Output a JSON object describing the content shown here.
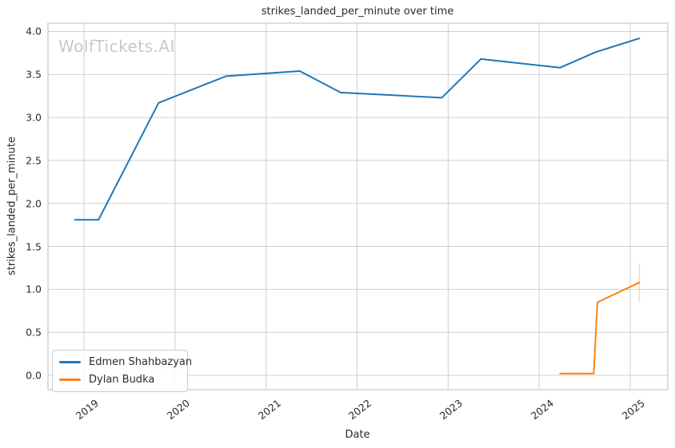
{
  "watermark": "WolfTickets.AI",
  "chart_data": {
    "type": "line",
    "title": "strikes_landed_per_minute over time",
    "xlabel": "Date",
    "ylabel": "strikes_landed_per_minute",
    "x_tick_labels": [
      "2019",
      "2020",
      "2021",
      "2022",
      "2023",
      "2024",
      "2025"
    ],
    "y_tick_labels": [
      "0.0",
      "0.5",
      "1.0",
      "1.5",
      "2.0",
      "2.5",
      "3.0",
      "3.5",
      "4.0"
    ],
    "xlim": [
      2018.6,
      2025.41
    ],
    "ylim": [
      -0.17,
      4.1
    ],
    "grid": true,
    "legend_position": "lower left",
    "colors": {
      "edmen_shahbazyan": "#1f77b4",
      "dylan_budka": "#ff7f0e",
      "grid": "#cfcfcf",
      "spine": "#c6c6c6",
      "text": "#2b2b2b",
      "watermark": "#c9c9c9"
    },
    "series": [
      {
        "name": "Edmen Shahbazyan",
        "color": "#1f77b4",
        "x": [
          2018.9,
          2019.16,
          2019.82,
          2020.56,
          2021.37,
          2021.82,
          2022.93,
          2023.36,
          2024.23,
          2024.62,
          2025.1
        ],
        "y": [
          1.81,
          1.81,
          3.17,
          3.48,
          3.54,
          3.29,
          3.23,
          3.68,
          3.58,
          3.76,
          3.92
        ]
      },
      {
        "name": "Dylan Budka",
        "color": "#ff7f0e",
        "x": [
          2024.23,
          2024.6,
          2024.64,
          2025.1
        ],
        "y": [
          0.02,
          0.02,
          0.85,
          1.08
        ],
        "error_bar": {
          "x": 2025.1,
          "y_min": 0.85,
          "y_max": 1.3
        }
      }
    ]
  }
}
